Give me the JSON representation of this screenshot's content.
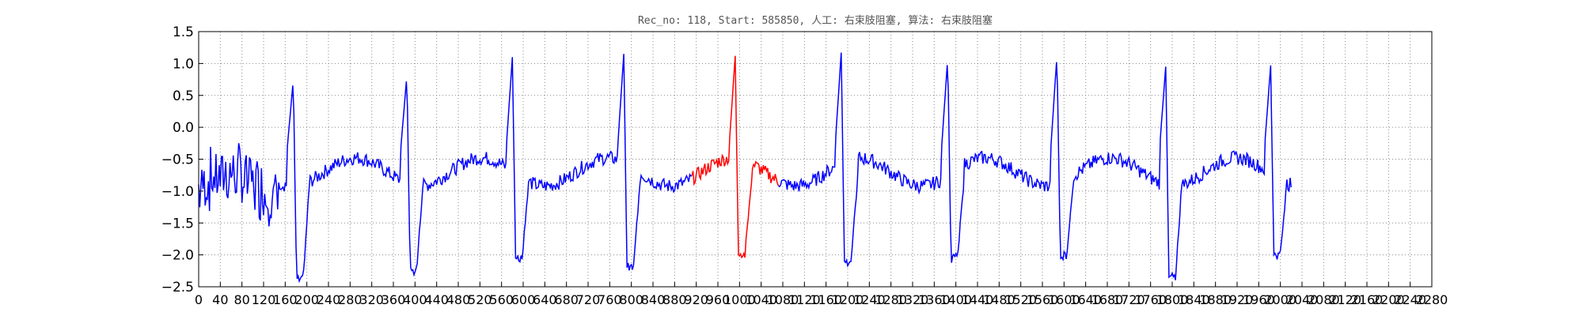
{
  "chart_data": {
    "type": "line",
    "title": "Rec_no: 118, Start: 585850, 人工: 右束肢阻塞, 算法: 右束肢阻塞",
    "xlabel": "",
    "ylabel": "",
    "xlim": [
      0,
      2280
    ],
    "ylim": [
      -2.5,
      1.5
    ],
    "y_ticks": [
      "1.5",
      "1.0",
      "0.5",
      "0.0",
      "−0.5",
      "−1.0",
      "−1.5",
      "−2.0",
      "−2.5"
    ],
    "x_ticks": [
      "0",
      "40",
      "80",
      "120",
      "160",
      "200",
      "240",
      "280",
      "320",
      "360",
      "400",
      "440",
      "480",
      "520",
      "560",
      "600",
      "640",
      "680",
      "720",
      "760",
      "800",
      "840",
      "880",
      "920",
      "960",
      "1000",
      "1040",
      "1080",
      "1120",
      "1160",
      "1200",
      "1240",
      "1280",
      "1320",
      "1360",
      "1400",
      "1440",
      "1480",
      "1520",
      "1560",
      "1600",
      "1640",
      "1680",
      "1720",
      "1760",
      "1800",
      "1840",
      "1880",
      "1920",
      "1960",
      "2000",
      "2040",
      "2080",
      "2120",
      "2160",
      "2200",
      "2240",
      "2280"
    ],
    "grid": true,
    "series_colors": [
      "#0000ff",
      "#ff0000"
    ],
    "beats": [
      {
        "r": 175,
        "peak": 0.75,
        "trough": -2.4,
        "highlight": false
      },
      {
        "r": 385,
        "peak": 0.82,
        "trough": -2.25,
        "highlight": false
      },
      {
        "r": 580,
        "peak": 1.1,
        "trough": -2.05,
        "highlight": false
      },
      {
        "r": 786,
        "peak": 1.15,
        "trough": -2.2,
        "highlight": false
      },
      {
        "r": 992,
        "peak": 1.12,
        "trough": -2.0,
        "highlight": true
      },
      {
        "r": 1188,
        "peak": 1.17,
        "trough": -2.1,
        "highlight": false
      },
      {
        "r": 1385,
        "peak": 1.1,
        "trough": -2.05,
        "highlight": false
      },
      {
        "r": 1587,
        "peak": 1.15,
        "trough": -2.0,
        "highlight": false
      },
      {
        "r": 1788,
        "peak": 0.95,
        "trough": -2.35,
        "highlight": false
      },
      {
        "r": 1982,
        "peak": 0.97,
        "trough": -2.0,
        "highlight": false
      }
    ],
    "x_end": 2020,
    "highlight_range": [
      912,
      1072
    ]
  }
}
